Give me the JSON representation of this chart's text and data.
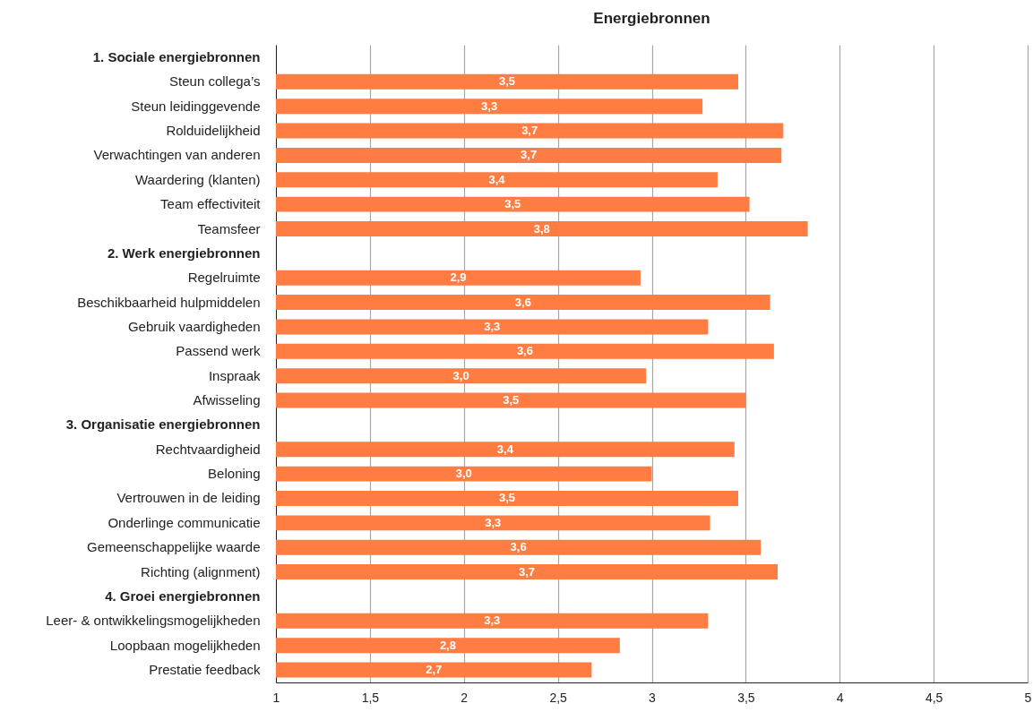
{
  "chart_data": {
    "type": "bar",
    "orientation": "horizontal",
    "title": "Energiebronnen",
    "categories": [
      "1. Sociale energiebronnen",
      "Steun collega’s",
      "Steun leidinggevende",
      "Rolduidelijkheid",
      "Verwachtingen van anderen",
      "Waardering (klanten)",
      "Team effectiviteit",
      "Teamsfeer",
      "2. Werk energiebronnen",
      "Regelruimte",
      "Beschikbaarheid hulpmiddelen",
      "Gebruik vaardigheden",
      "Passend werk",
      "Inspraak",
      "Afwisseling",
      "3. Organisatie energiebronnen",
      "Rechtvaardigheid",
      "Beloning",
      "Vertrouwen in de leiding",
      "Onderlinge communicatie",
      "Gemeenschappelijke waarde",
      "Richting (alignment)",
      "4. Groei energiebronnen",
      "Leer- & ontwikkelingsmogelijkheden",
      "Loopbaan mogelijkheden",
      "Prestatie feedback"
    ],
    "values": [
      null,
      3.46,
      3.27,
      3.7,
      3.69,
      3.35,
      3.52,
      3.83,
      null,
      2.94,
      3.63,
      3.3,
      3.65,
      2.97,
      3.5,
      null,
      3.44,
      3.0,
      3.46,
      3.31,
      3.58,
      3.67,
      null,
      3.3,
      2.83,
      2.68
    ],
    "value_labels": [
      null,
      "3,5",
      "3,3",
      "3,7",
      "3,7",
      "3,4",
      "3,5",
      "3,8",
      null,
      "2,9",
      "3,6",
      "3,3",
      "3,6",
      "3,0",
      "3,5",
      null,
      "3,4",
      "3,0",
      "3,5",
      "3,3",
      "3,6",
      "3,7",
      null,
      "3,3",
      "2,8",
      "2,7"
    ],
    "color": "#ff7c43",
    "xlim": [
      1,
      5
    ],
    "xticks": [
      1,
      {
        "value": 1.5,
        "label": "1,5"
      },
      2,
      {
        "value": 2.5,
        "label": "2,5"
      },
      3,
      {
        "value": 3.5,
        "label": "3,5"
      },
      4,
      {
        "value": 4.5,
        "label": "4,5"
      },
      5
    ],
    "grid": "x"
  }
}
